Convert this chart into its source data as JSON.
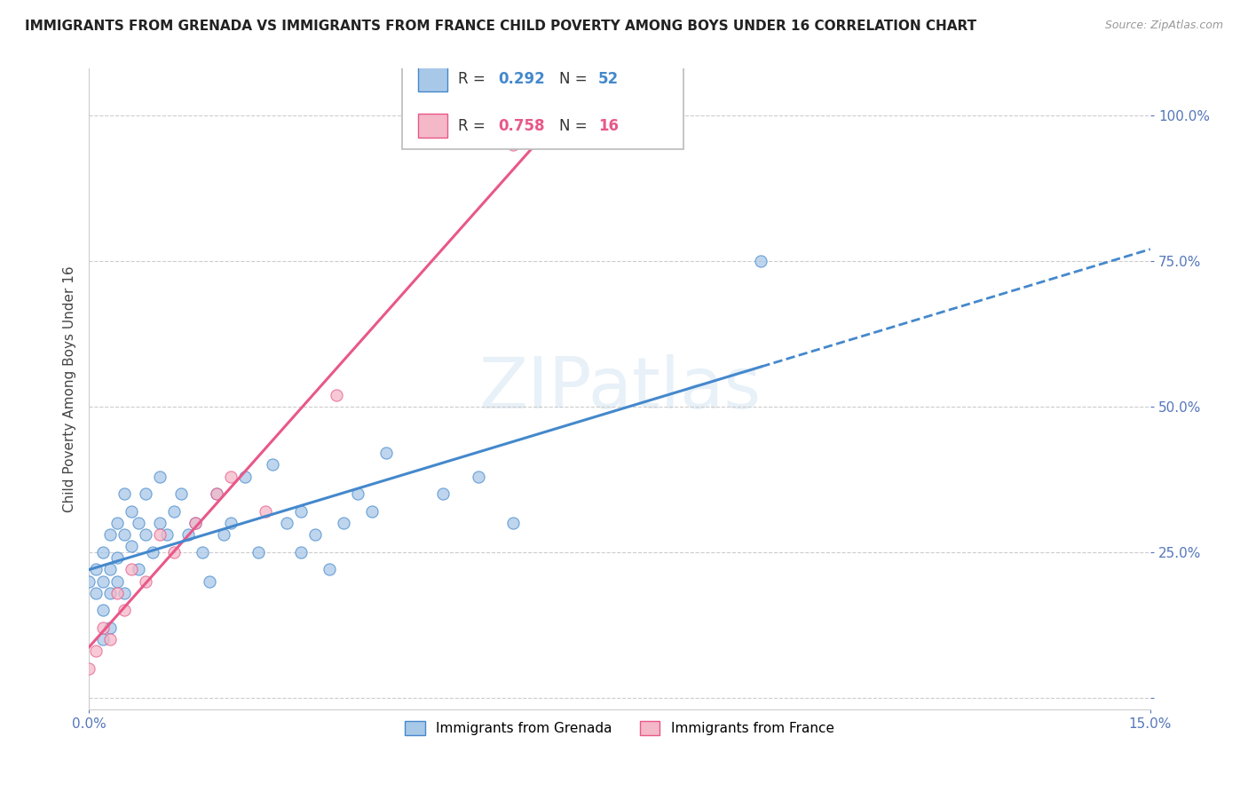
{
  "title": "IMMIGRANTS FROM GRENADA VS IMMIGRANTS FROM FRANCE CHILD POVERTY AMONG BOYS UNDER 16 CORRELATION CHART",
  "source": "Source: ZipAtlas.com",
  "ylabel": "Child Poverty Among Boys Under 16",
  "watermark": "ZIPatlas",
  "R_grenada": 0.292,
  "N_grenada": 52,
  "R_france": 0.758,
  "N_france": 16,
  "xlim": [
    0.0,
    0.15
  ],
  "ylim": [
    -0.02,
    1.08
  ],
  "yticks": [
    0.0,
    0.25,
    0.5,
    0.75,
    1.0
  ],
  "yticklabels": [
    "",
    "25.0%",
    "50.0%",
    "75.0%",
    "100.0%"
  ],
  "color_grenada": "#a8c8e8",
  "color_france": "#f4b8c8",
  "trendline_grenada": "#4488cc",
  "trendline_france": "#e85888",
  "grenada_x": [
    0.0,
    0.001,
    0.001,
    0.002,
    0.002,
    0.002,
    0.002,
    0.003,
    0.003,
    0.003,
    0.003,
    0.004,
    0.004,
    0.004,
    0.005,
    0.005,
    0.005,
    0.006,
    0.006,
    0.007,
    0.007,
    0.008,
    0.008,
    0.009,
    0.01,
    0.01,
    0.011,
    0.012,
    0.013,
    0.014,
    0.015,
    0.016,
    0.017,
    0.018,
    0.019,
    0.02,
    0.022,
    0.024,
    0.026,
    0.028,
    0.03,
    0.03,
    0.032,
    0.034,
    0.036,
    0.038,
    0.04,
    0.042,
    0.05,
    0.055,
    0.06,
    0.095
  ],
  "grenada_y": [
    0.2,
    0.22,
    0.18,
    0.25,
    0.2,
    0.15,
    0.1,
    0.28,
    0.22,
    0.18,
    0.12,
    0.3,
    0.24,
    0.2,
    0.35,
    0.28,
    0.18,
    0.32,
    0.26,
    0.3,
    0.22,
    0.35,
    0.28,
    0.25,
    0.38,
    0.3,
    0.28,
    0.32,
    0.35,
    0.28,
    0.3,
    0.25,
    0.2,
    0.35,
    0.28,
    0.3,
    0.38,
    0.25,
    0.4,
    0.3,
    0.32,
    0.25,
    0.28,
    0.22,
    0.3,
    0.35,
    0.32,
    0.42,
    0.35,
    0.38,
    0.3,
    0.75
  ],
  "france_x": [
    0.0,
    0.001,
    0.002,
    0.003,
    0.004,
    0.005,
    0.006,
    0.008,
    0.01,
    0.012,
    0.015,
    0.018,
    0.02,
    0.025,
    0.035,
    0.06
  ],
  "france_y": [
    0.05,
    0.08,
    0.12,
    0.1,
    0.18,
    0.15,
    0.22,
    0.2,
    0.28,
    0.25,
    0.3,
    0.35,
    0.38,
    0.32,
    0.52,
    0.95
  ],
  "legend_box_color": "#ffffff",
  "legend_border_color": "#cccccc",
  "tick_color": "#5577bb",
  "grid_color": "#cccccc"
}
